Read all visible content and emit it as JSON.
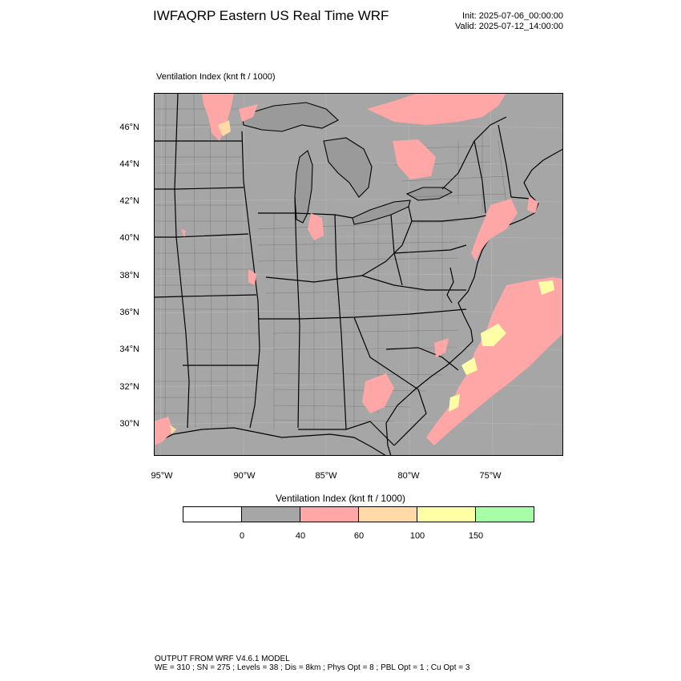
{
  "header": {
    "title": "IWFAQRP Eastern US Real Time WRF",
    "init": "Init: 2025-07-06_00:00:00",
    "valid": "Valid: 2025-07-12_14:00:00"
  },
  "map": {
    "field_label": "Ventilation Index   (knt ft / 1000)",
    "lat_labels": [
      "46°N",
      "44°N",
      "42°N",
      "40°N",
      "38°N",
      "36°N",
      "34°N",
      "32°N",
      "30°N"
    ],
    "lon_labels": [
      "95°W",
      "90°W",
      "85°W",
      "80°W",
      "75°W"
    ],
    "colors": {
      "land_bg": "#a6a6a6",
      "water": "#a6a6a6",
      "class_40_60": "#ffa6a6",
      "class_60_100": "#ffd9a6",
      "class_100_150": "#ffffa6",
      "borders": "#000000"
    }
  },
  "legend": {
    "title": "Ventilation Index  (knt ft / 1000)",
    "colors": [
      "#ffffff",
      "#a6a6a6",
      "#ffa6a6",
      "#ffd9a6",
      "#ffffa6",
      "#a6ffa6"
    ],
    "ticks": [
      "0",
      "40",
      "60",
      "100",
      "150"
    ]
  },
  "footer": {
    "line1": "OUTPUT FROM WRF V4.6.1 MODEL",
    "line2": "WE = 310 ; SN = 275 ; Levels = 38 ; Dis = 8km ; Phys Opt = 8 ; PBL Opt = 1 ; Cu Opt = 3"
  }
}
